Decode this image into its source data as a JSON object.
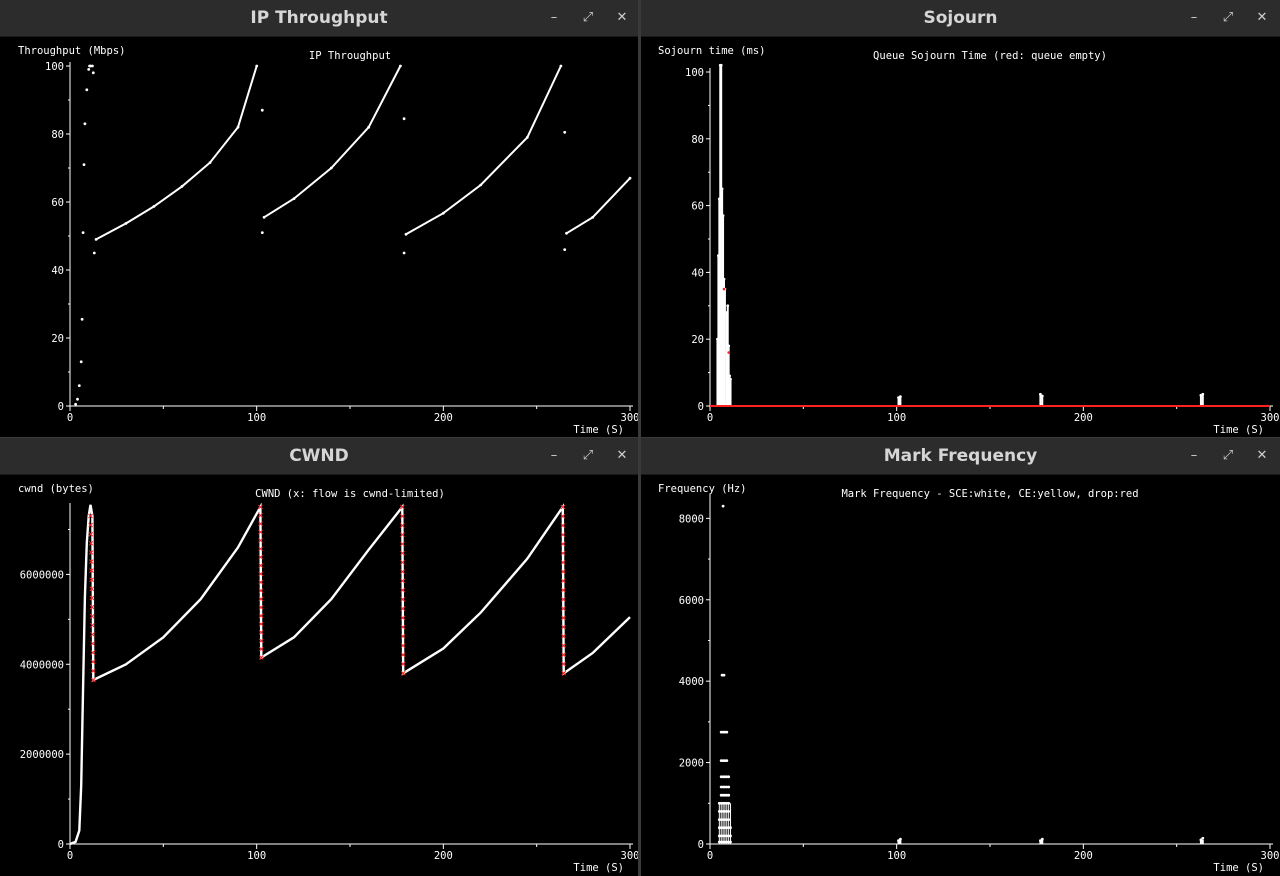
{
  "windows": [
    {
      "id": "throughput",
      "title": "IP Throughput",
      "controls": {
        "minimize": "–",
        "maximize": "⤢",
        "close": "✕"
      },
      "chart_data": {
        "type": "scatter",
        "title": "IP Throughput",
        "xlabel": "Time (S)",
        "ylabel": "Throughput (Mbps)",
        "xlim": [
          0,
          300
        ],
        "ylim": [
          0,
          100
        ],
        "xticks": [
          0,
          100,
          200,
          300
        ],
        "yticks": [
          0,
          20,
          40,
          60,
          80,
          100
        ],
        "grid": false,
        "series": [
          {
            "color": "#ffffff",
            "points": [
              [
                3,
                0.5
              ],
              [
                4,
                2
              ],
              [
                5,
                6
              ],
              [
                6,
                13
              ],
              [
                6.5,
                25.5
              ],
              [
                7,
                51
              ],
              [
                7.5,
                71
              ],
              [
                8,
                83
              ],
              [
                9,
                93
              ],
              [
                10,
                99
              ],
              [
                10.5,
                100
              ],
              [
                11,
                100
              ],
              [
                12,
                100
              ],
              [
                12.5,
                98
              ],
              [
                13,
                45
              ],
              [
                14,
                49
              ],
              [
                30,
                53.7
              ],
              [
                45,
                58.7
              ],
              [
                60,
                64.6
              ],
              [
                75,
                71.6
              ],
              [
                90,
                82
              ],
              [
                100,
                100
              ],
              [
                103,
                87
              ],
              [
                103,
                51
              ],
              [
                104,
                55.5
              ],
              [
                120,
                61
              ],
              [
                140,
                70
              ],
              [
                160,
                82
              ],
              [
                177,
                100
              ],
              [
                179,
                84.5
              ],
              [
                179,
                45
              ],
              [
                180,
                50.5
              ],
              [
                200,
                56.7
              ],
              [
                220,
                65
              ],
              [
                245,
                79
              ],
              [
                263,
                100
              ],
              [
                265,
                80.5
              ],
              [
                265,
                46
              ],
              [
                266,
                50.8
              ],
              [
                280,
                55.5
              ],
              [
                300,
                67
              ]
            ]
          }
        ]
      }
    },
    {
      "id": "sojourn",
      "title": "Sojourn",
      "controls": {
        "minimize": "–",
        "maximize": "⤢",
        "close": "✕"
      },
      "chart_data": {
        "type": "scatter",
        "title": "Queue Sojourn Time (red: queue empty)",
        "xlabel": "Time (S)",
        "ylabel": "Sojourn time (ms)",
        "xlim": [
          0,
          300
        ],
        "ylim": [
          0,
          100
        ],
        "xticks": [
          0,
          100,
          200,
          300
        ],
        "yticks": [
          0,
          20,
          40,
          60,
          80,
          100
        ],
        "grid": false,
        "series": [
          {
            "color": "#ffffff",
            "points": [
              [
                4,
                20
              ],
              [
                4.5,
                45
              ],
              [
                5,
                62
              ],
              [
                5.5,
                102
              ],
              [
                6,
                102
              ],
              [
                6.5,
                65
              ],
              [
                7,
                57
              ],
              [
                7.5,
                38
              ],
              [
                8,
                35
              ],
              [
                9,
                28
              ],
              [
                9.5,
                30
              ],
              [
                10,
                18
              ],
              [
                10.5,
                9
              ],
              [
                11,
                8
              ],
              [
                101,
                2.5
              ],
              [
                102,
                2.8
              ],
              [
                177,
                3.5
              ],
              [
                178,
                3
              ],
              [
                263,
                3.2
              ],
              [
                264,
                3.5
              ]
            ]
          },
          {
            "color": "#ff2020",
            "points": [
              [
                0,
                0
              ],
              [
                300,
                0
              ],
              [
                7.5,
                35
              ],
              [
                10,
                16
              ]
            ]
          }
        ]
      }
    },
    {
      "id": "cwnd",
      "title": "CWND",
      "controls": {
        "minimize": "–",
        "maximize": "⤢",
        "close": "✕"
      },
      "chart_data": {
        "type": "line",
        "title": "CWND (x: flow is cwnd-limited)",
        "xlabel": "Time (S)",
        "ylabel": "cwnd (bytes)",
        "xlim": [
          0,
          300
        ],
        "ylim": [
          0,
          7500000
        ],
        "xticks": [
          0,
          100,
          200,
          300
        ],
        "yticks": [
          0,
          2000000,
          4000000,
          6000000
        ],
        "grid": false,
        "series": [
          {
            "color": "#ffffff",
            "points": [
              [
                0,
                0
              ],
              [
                3,
                50000
              ],
              [
                5,
                300000
              ],
              [
                6,
                1300000
              ],
              [
                7,
                3500000
              ],
              [
                8,
                5500000
              ],
              [
                9,
                6700000
              ],
              [
                10,
                7300000
              ],
              [
                11,
                7550000
              ],
              [
                12,
                7300000
              ],
              [
                12.5,
                3650000
              ],
              [
                30,
                4000000
              ],
              [
                50,
                4600000
              ],
              [
                70,
                5450000
              ],
              [
                90,
                6600000
              ],
              [
                102,
                7500000
              ],
              [
                102.5,
                4150000
              ],
              [
                120,
                4600000
              ],
              [
                140,
                5450000
              ],
              [
                160,
                6550000
              ],
              [
                178,
                7500000
              ],
              [
                178.5,
                3800000
              ],
              [
                200,
                4350000
              ],
              [
                220,
                5150000
              ],
              [
                245,
                6350000
              ],
              [
                264,
                7500000
              ],
              [
                264.5,
                3800000
              ],
              [
                280,
                4250000
              ],
              [
                300,
                5050000
              ]
            ]
          },
          {
            "color": "#ff2020",
            "marker": "x",
            "segments": [
              [
                11,
                12.5,
                7300000,
                3650000
              ],
              [
                102,
                102.5,
                7500000,
                4150000
              ],
              [
                178,
                178.5,
                7500000,
                3800000
              ],
              [
                264,
                264.5,
                7500000,
                3800000
              ]
            ]
          }
        ]
      }
    },
    {
      "id": "mark-frequency",
      "title": "Mark Frequency",
      "controls": {
        "minimize": "–",
        "maximize": "⤢",
        "close": "✕"
      },
      "chart_data": {
        "type": "scatter",
        "title": "Mark Frequency - SCE:white, CE:yellow, drop:red",
        "xlabel": "Time (S)",
        "ylabel": "Frequency (Hz)",
        "xlim": [
          0,
          300
        ],
        "ylim": [
          0,
          8500
        ],
        "xticks": [
          0,
          100,
          200,
          300
        ],
        "yticks": [
          0,
          2000,
          4000,
          6000,
          8000
        ],
        "grid": false,
        "series": [
          {
            "color": "#ffffff",
            "points": [
              [
                7,
                8300
              ],
              [
                6.5,
                4150
              ],
              [
                7.5,
                4150
              ],
              [
                6,
                2750
              ],
              [
                7,
                2750
              ],
              [
                8,
                2750
              ],
              [
                9,
                2750
              ],
              [
                6,
                2050
              ],
              [
                7,
                2050
              ],
              [
                8,
                2050
              ],
              [
                9,
                2050
              ],
              [
                6,
                1650
              ],
              [
                7,
                1650
              ],
              [
                8,
                1650
              ],
              [
                9,
                1650
              ],
              [
                10,
                1650
              ],
              [
                6,
                1400
              ],
              [
                7,
                1400
              ],
              [
                8,
                1400
              ],
              [
                9,
                1400
              ],
              [
                10,
                1400
              ],
              [
                6,
                1200
              ],
              [
                7,
                1200
              ],
              [
                8,
                1200
              ],
              [
                9,
                1200
              ],
              [
                10,
                1200
              ],
              [
                5,
                1000
              ],
              [
                6,
                1000
              ],
              [
                7,
                1000
              ],
              [
                8,
                1000
              ],
              [
                9,
                1000
              ],
              [
                10,
                1000
              ],
              [
                5,
                800
              ],
              [
                6,
                800
              ],
              [
                7,
                800
              ],
              [
                8,
                800
              ],
              [
                9,
                800
              ],
              [
                10,
                800
              ],
              [
                5,
                600
              ],
              [
                6,
                600
              ],
              [
                7,
                600
              ],
              [
                8,
                600
              ],
              [
                9,
                600
              ],
              [
                10,
                600
              ],
              [
                5,
                400
              ],
              [
                6,
                400
              ],
              [
                7,
                400
              ],
              [
                8,
                400
              ],
              [
                9,
                400
              ],
              [
                10,
                400
              ],
              [
                11,
                400
              ],
              [
                5,
                200
              ],
              [
                6,
                200
              ],
              [
                7,
                200
              ],
              [
                8,
                200
              ],
              [
                9,
                200
              ],
              [
                10,
                200
              ],
              [
                11,
                200
              ],
              [
                5,
                50
              ],
              [
                6,
                50
              ],
              [
                7,
                50
              ],
              [
                8,
                50
              ],
              [
                9,
                50
              ],
              [
                10,
                50
              ],
              [
                11,
                50
              ],
              [
                101,
                80
              ],
              [
                102,
                120
              ],
              [
                177,
                80
              ],
              [
                178,
                120
              ],
              [
                263,
                100
              ],
              [
                264,
                140
              ]
            ]
          }
        ]
      }
    }
  ]
}
